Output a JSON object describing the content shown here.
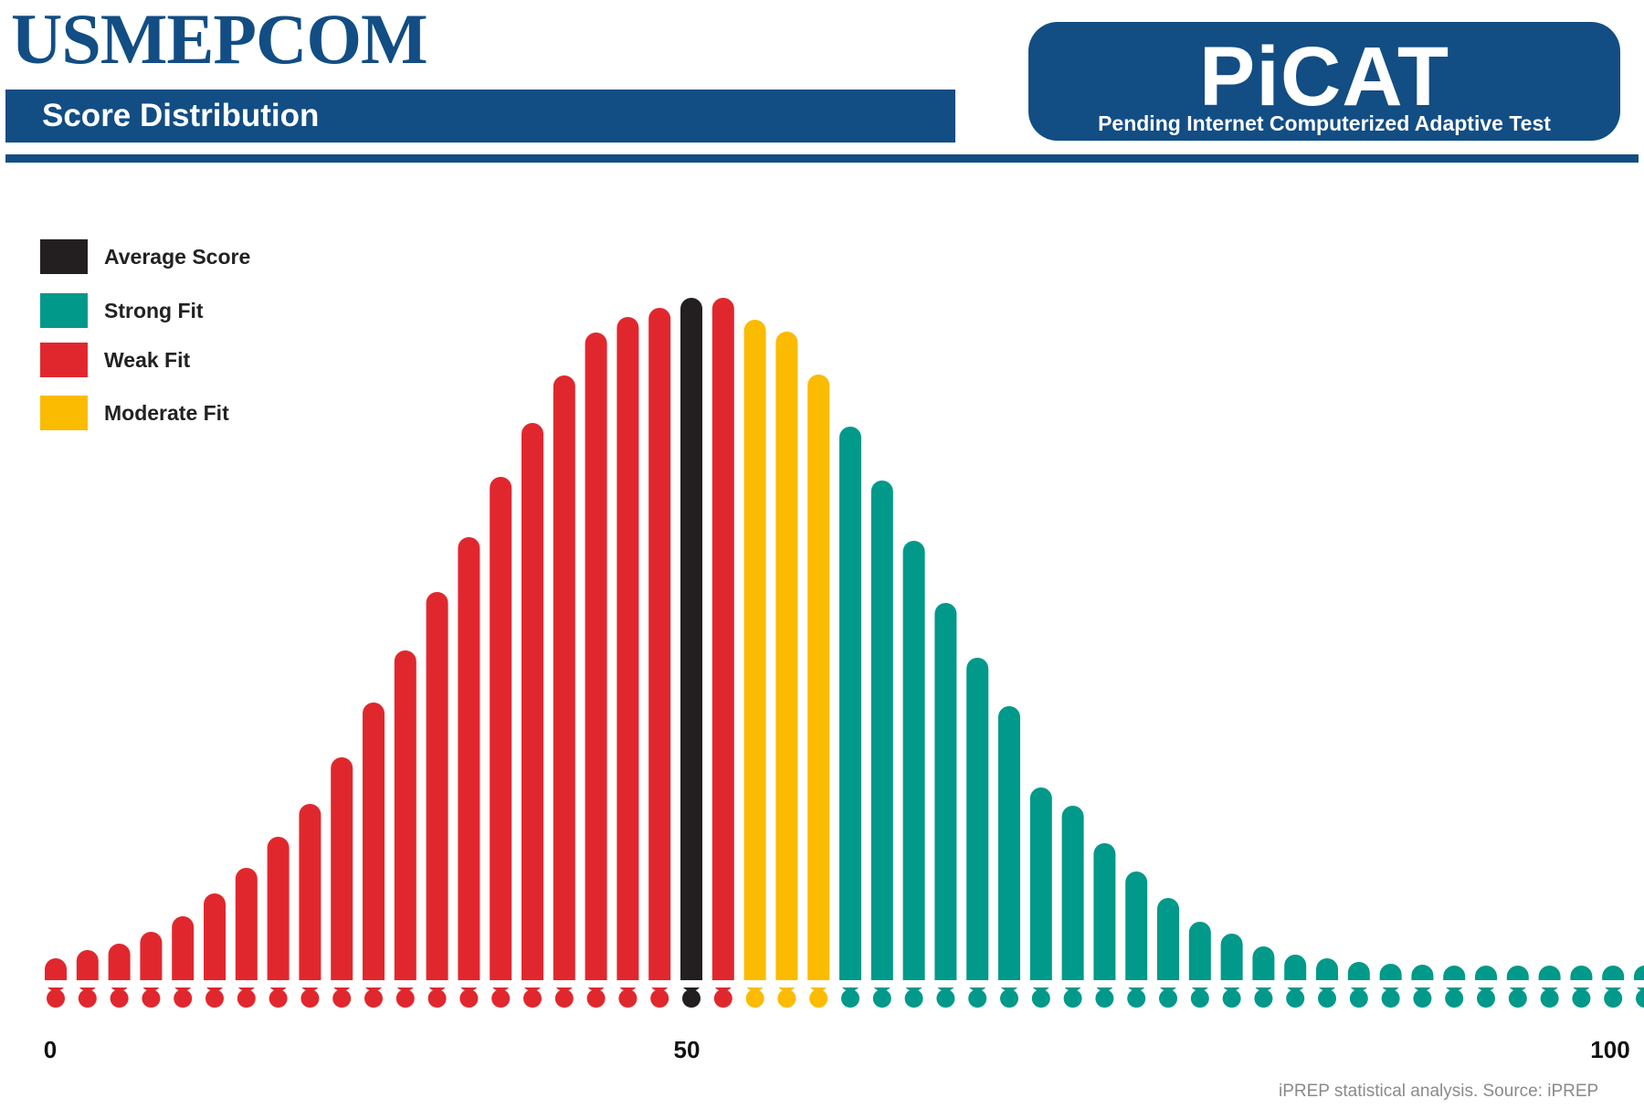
{
  "header": {
    "brand": "USMEPCOM",
    "subtitle": "Score Distribution",
    "badge_title": "PiCAT",
    "badge_subtitle": "Pending Internet Computerized Adaptive Test"
  },
  "legend": [
    {
      "label": "Average Score",
      "color": "#231f20"
    },
    {
      "label": "Strong Fit",
      "color": "#00998a"
    },
    {
      "label": "Weak Fit",
      "color": "#e1272e"
    },
    {
      "label": "Moderate Fit",
      "color": "#fbbb00"
    }
  ],
  "colors": {
    "brand": "#124d84",
    "average": "#231f20",
    "strong": "#00998a",
    "weak": "#e1272e",
    "moderate": "#fbbb00"
  },
  "source": "iPREP statistical analysis. Source: iPREP",
  "chart_data": {
    "type": "bar",
    "title": "Score Distribution",
    "xlabel": "",
    "ylabel": "",
    "x_ticks": [
      "0",
      "50",
      "100"
    ],
    "xlim": [
      0,
      100
    ],
    "grid": false,
    "legend_position": "top-left",
    "bars": [
      {
        "value": 2.4,
        "fit": "weak"
      },
      {
        "value": 3.3,
        "fit": "weak"
      },
      {
        "value": 4.0,
        "fit": "weak"
      },
      {
        "value": 5.3,
        "fit": "weak"
      },
      {
        "value": 7.0,
        "fit": "weak"
      },
      {
        "value": 9.5,
        "fit": "weak"
      },
      {
        "value": 12.3,
        "fit": "weak"
      },
      {
        "value": 15.7,
        "fit": "weak"
      },
      {
        "value": 19.3,
        "fit": "weak"
      },
      {
        "value": 24.4,
        "fit": "weak"
      },
      {
        "value": 30.4,
        "fit": "weak"
      },
      {
        "value": 36.1,
        "fit": "weak"
      },
      {
        "value": 42.5,
        "fit": "weak"
      },
      {
        "value": 48.5,
        "fit": "weak"
      },
      {
        "value": 55.1,
        "fit": "weak"
      },
      {
        "value": 61.0,
        "fit": "weak"
      },
      {
        "value": 66.2,
        "fit": "weak"
      },
      {
        "value": 70.9,
        "fit": "weak"
      },
      {
        "value": 72.6,
        "fit": "weak"
      },
      {
        "value": 73.6,
        "fit": "weak"
      },
      {
        "value": 74.7,
        "fit": "average"
      },
      {
        "value": 74.7,
        "fit": "weak"
      },
      {
        "value": 72.3,
        "fit": "moderate"
      },
      {
        "value": 71.0,
        "fit": "moderate"
      },
      {
        "value": 66.3,
        "fit": "moderate"
      },
      {
        "value": 60.6,
        "fit": "strong"
      },
      {
        "value": 54.7,
        "fit": "strong"
      },
      {
        "value": 48.1,
        "fit": "strong"
      },
      {
        "value": 41.3,
        "fit": "strong"
      },
      {
        "value": 35.3,
        "fit": "strong"
      },
      {
        "value": 30.0,
        "fit": "strong"
      },
      {
        "value": 21.1,
        "fit": "strong"
      },
      {
        "value": 19.1,
        "fit": "strong"
      },
      {
        "value": 15.0,
        "fit": "strong"
      },
      {
        "value": 11.9,
        "fit": "strong"
      },
      {
        "value": 9.0,
        "fit": "strong"
      },
      {
        "value": 6.4,
        "fit": "strong"
      },
      {
        "value": 5.1,
        "fit": "strong"
      },
      {
        "value": 3.7,
        "fit": "strong"
      },
      {
        "value": 2.8,
        "fit": "strong"
      },
      {
        "value": 2.4,
        "fit": "strong"
      },
      {
        "value": 2.0,
        "fit": "strong"
      },
      {
        "value": 1.8,
        "fit": "strong"
      },
      {
        "value": 1.7,
        "fit": "strong"
      },
      {
        "value": 1.6,
        "fit": "strong"
      },
      {
        "value": 1.6,
        "fit": "strong"
      },
      {
        "value": 1.6,
        "fit": "strong"
      },
      {
        "value": 1.6,
        "fit": "strong"
      },
      {
        "value": 1.6,
        "fit": "strong"
      },
      {
        "value": 1.6,
        "fit": "strong"
      },
      {
        "value": 1.6,
        "fit": "strong"
      }
    ]
  }
}
